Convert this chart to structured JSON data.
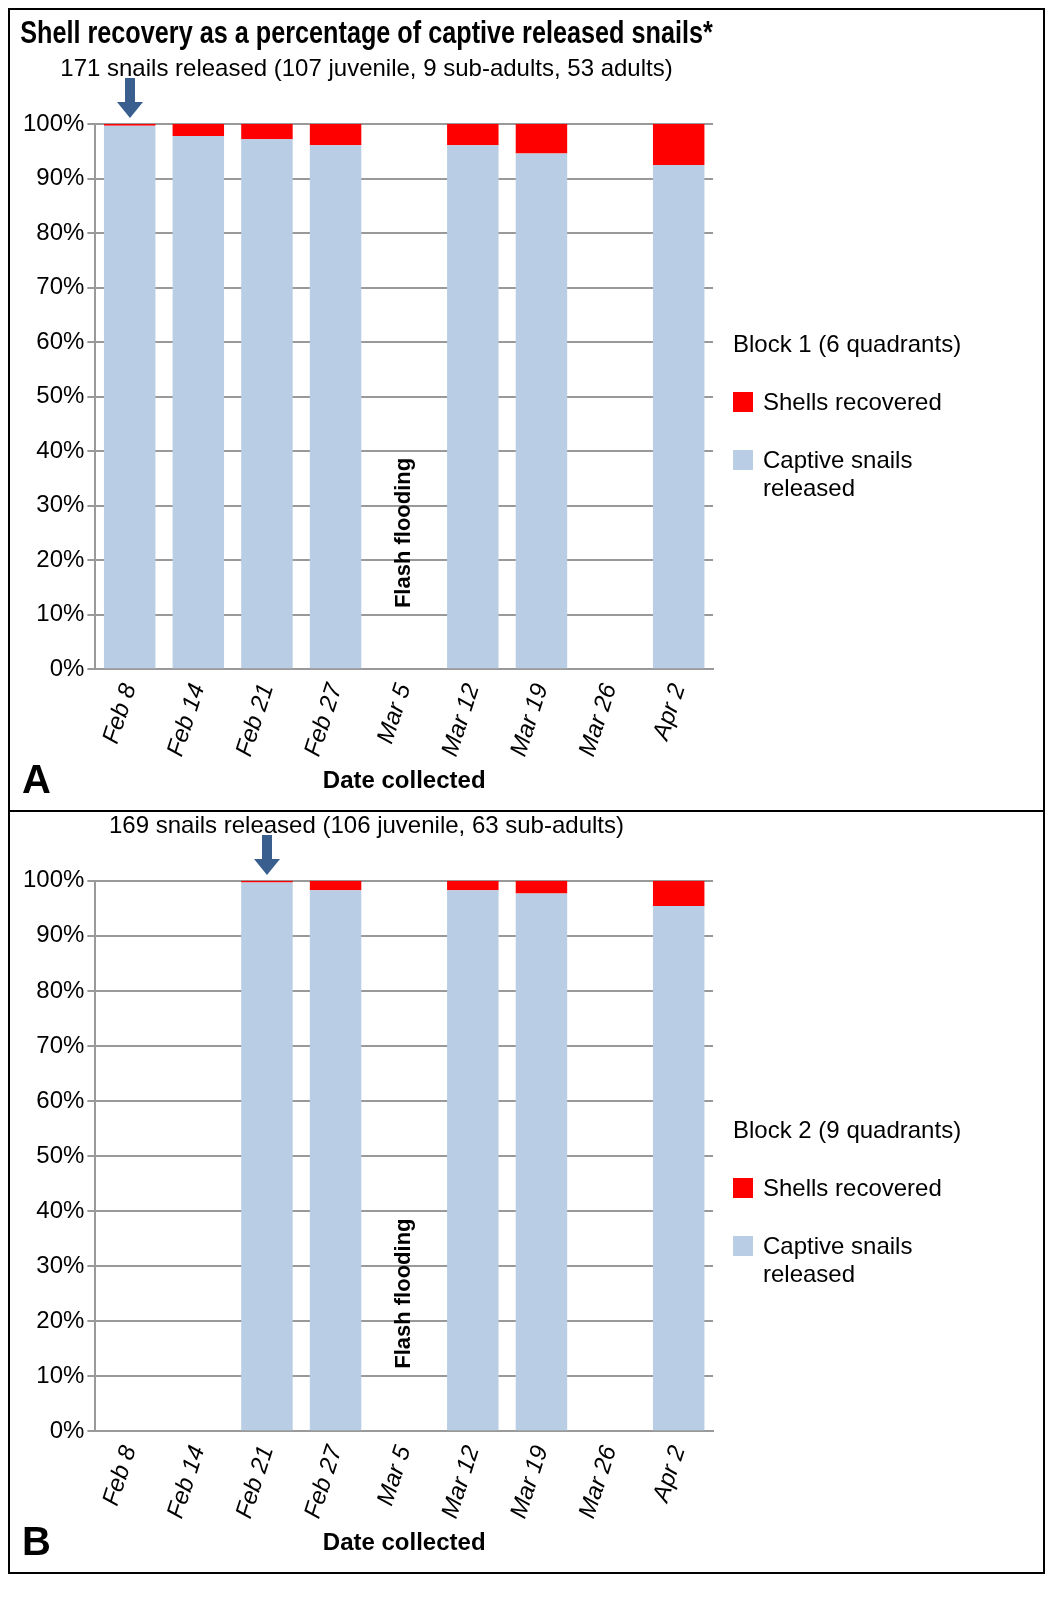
{
  "chart_data": [
    {
      "type": "bar",
      "title": "Shell recovery as a percentage of captive released snails*",
      "subtitle": "171 snails released (107 juvenile, 9 sub-adults, 53 adults)",
      "xlabel": "Date collected",
      "legend_title": "Block 1 (6 quadrants)",
      "categories": [
        "Feb 8",
        "Feb 14",
        "Feb 21",
        "Feb 27",
        "Mar 5",
        "Mar 12",
        "Mar 19",
        "Mar 26",
        "Apr 2"
      ],
      "stacked": true,
      "series": [
        {
          "name": "Captive snails released",
          "color": "#b9cde4",
          "values": [
            99.7,
            97.8,
            97.2,
            96.1,
            null,
            96.1,
            94.6,
            null,
            92.5
          ]
        },
        {
          "name": "Shells recovered",
          "color": "#ff0000",
          "values": [
            0.3,
            2.2,
            2.8,
            3.9,
            null,
            3.9,
            5.4,
            null,
            7.5
          ]
        }
      ],
      "ylim": [
        0,
        100
      ],
      "yticks": [
        {
          "value": 0,
          "label": "0%"
        },
        {
          "value": 10,
          "label": "10%"
        },
        {
          "value": 20,
          "label": "20%"
        },
        {
          "value": 30,
          "label": "30%"
        },
        {
          "value": 40,
          "label": "40%"
        },
        {
          "value": 50,
          "label": "50%"
        },
        {
          "value": 60,
          "label": "60%"
        },
        {
          "value": 70,
          "label": "70%"
        },
        {
          "value": 80,
          "label": "80%"
        },
        {
          "value": 90,
          "label": "90%"
        },
        {
          "value": 100,
          "label": "100%"
        }
      ],
      "grid": "y",
      "legend": "right",
      "annotations": [
        "A",
        "Flash flooding"
      ]
    },
    {
      "type": "bar",
      "subtitle": "169 snails released (106 juvenile, 63 sub-adults)",
      "xlabel": "Date collected",
      "legend_title": "Block 2 (9 quadrants)",
      "categories": [
        "Feb 8",
        "Feb 14",
        "Feb 21",
        "Feb 27",
        "Mar 5",
        "Mar 12",
        "Mar 19",
        "Mar 26",
        "Apr 2"
      ],
      "stacked": true,
      "series": [
        {
          "name": "Captive snails released",
          "color": "#b9cde4",
          "values": [
            null,
            null,
            99.7,
            98.3,
            null,
            98.3,
            97.7,
            null,
            95.4
          ]
        },
        {
          "name": "Shells recovered",
          "color": "#ff0000",
          "values": [
            null,
            null,
            0.3,
            1.7,
            null,
            1.7,
            2.3,
            null,
            4.6
          ]
        }
      ],
      "ylim": [
        0,
        100
      ],
      "yticks": [
        {
          "value": 0,
          "label": "0%"
        },
        {
          "value": 10,
          "label": "10%"
        },
        {
          "value": 20,
          "label": "20%"
        },
        {
          "value": 30,
          "label": "30%"
        },
        {
          "value": 40,
          "label": "40%"
        },
        {
          "value": 50,
          "label": "50%"
        },
        {
          "value": 60,
          "label": "60%"
        },
        {
          "value": 70,
          "label": "70%"
        },
        {
          "value": 80,
          "label": "80%"
        },
        {
          "value": 90,
          "label": "90%"
        },
        {
          "value": 100,
          "label": "100%"
        }
      ],
      "grid": "y",
      "legend": "right",
      "annotations": [
        "B",
        "Flash flooding"
      ]
    }
  ]
}
